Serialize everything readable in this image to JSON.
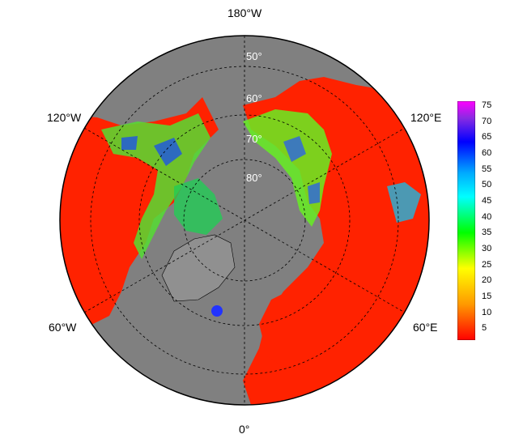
{
  "longitude_labels": {
    "top": "180°W",
    "left_upper": "120°W",
    "right_upper": "120°E",
    "left_lower": "60°W",
    "right_lower": "60°E",
    "bottom": "0°"
  },
  "latitude_labels": [
    "50°",
    "60°",
    "70°",
    "80°"
  ],
  "colorbar": {
    "ticks": [
      "75",
      "70",
      "65",
      "60",
      "55",
      "50",
      "45",
      "40",
      "35",
      "30",
      "25",
      "20",
      "15",
      "10",
      "5"
    ],
    "colors": [
      "#ff00ff",
      "#8a2be2",
      "#3300cc",
      "#0000ff",
      "#0066ff",
      "#00aaff",
      "#00ffff",
      "#00ffaa",
      "#00ff55",
      "#00ff00",
      "#88ff00",
      "#ffff00",
      "#ffcc00",
      "#ff8800",
      "#ff0000"
    ]
  },
  "colors": {
    "ocean": "#808080",
    "land_low": "#ff2200",
    "frame": "#000000"
  }
}
